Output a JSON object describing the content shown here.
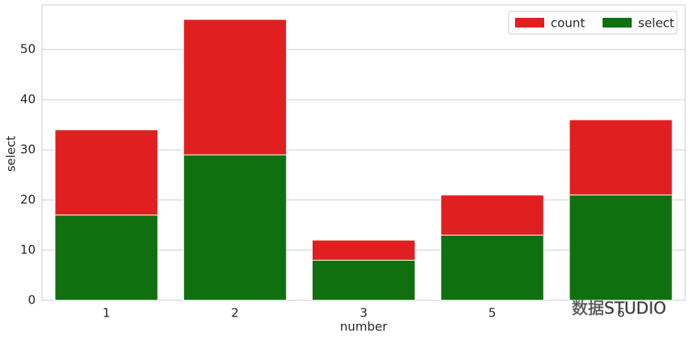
{
  "chart_data": {
    "type": "bar",
    "overlay": true,
    "categories": [
      "1",
      "2",
      "3",
      "5",
      "6"
    ],
    "series": [
      {
        "name": "count",
        "color": "#e02020",
        "values": [
          34,
          56,
          12,
          21,
          36
        ]
      },
      {
        "name": "select",
        "color": "#107010",
        "values": [
          17,
          29,
          8,
          13,
          21
        ]
      }
    ],
    "xlabel": "number",
    "ylabel": "select",
    "ylim": [
      0,
      58.9
    ],
    "yticks": [
      0,
      10,
      20,
      30,
      40,
      50
    ],
    "grid": true,
    "legend": "upper-right",
    "legend_columns": 2,
    "watermark": "数据STUDIO"
  }
}
